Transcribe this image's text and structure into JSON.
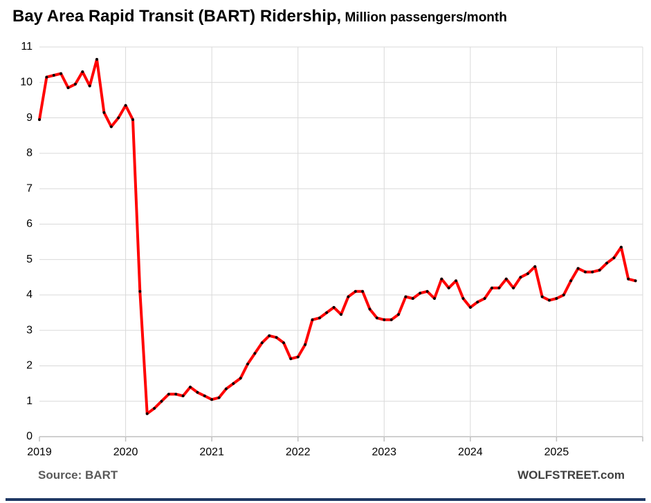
{
  "title": {
    "main": "Bay Area Rapid Transit (BART) Ridership,",
    "sub": " Million passengers/month"
  },
  "footer": {
    "source": "Source:  BART",
    "site": "WOLFSTREET.com"
  },
  "colors": {
    "line": "#ff0000",
    "marker": "#000000",
    "grid": "#d9d9d9",
    "axis": "#bfbfbf",
    "tick_label": "#000000",
    "accent_bar": "#1f3864"
  },
  "chart_data": {
    "type": "line",
    "title": "Bay Area Rapid Transit (BART) Ridership, Million passengers/month",
    "xlabel": "",
    "ylabel": "Million passengers/month",
    "ylim": [
      0,
      11
    ],
    "y_tick_step": 1,
    "grid": true,
    "legend": "none",
    "x_tick_labels": [
      "2019",
      "2020",
      "2021",
      "2022",
      "2023",
      "2024",
      "2025"
    ],
    "months_per_tick": 12,
    "months_total": 84,
    "x_start": "2019-01",
    "x_end": "2025-12",
    "series": [
      {
        "name": "BART ridership (million passengers/month)",
        "values": [
          8.95,
          10.15,
          10.2,
          10.25,
          9.85,
          9.95,
          10.3,
          9.9,
          10.65,
          9.15,
          8.75,
          9.0,
          9.35,
          8.95,
          4.1,
          0.65,
          0.8,
          1.0,
          1.2,
          1.2,
          1.15,
          1.4,
          1.25,
          1.15,
          1.05,
          1.1,
          1.35,
          1.5,
          1.65,
          2.05,
          2.35,
          2.65,
          2.85,
          2.8,
          2.65,
          2.2,
          2.25,
          2.6,
          3.3,
          3.35,
          3.5,
          3.65,
          3.45,
          3.95,
          4.1,
          4.1,
          3.6,
          3.35,
          3.3,
          3.3,
          3.45,
          3.95,
          3.9,
          4.05,
          4.1,
          3.9,
          4.45,
          4.2,
          4.4,
          3.9,
          3.65,
          3.8,
          3.9,
          4.2,
          4.2,
          4.45,
          4.2,
          4.5,
          4.6,
          4.8,
          3.95,
          3.85,
          3.9,
          4.0,
          4.4,
          4.75,
          4.65,
          4.65,
          4.7,
          4.9,
          5.05,
          5.35,
          4.45,
          4.4
        ]
      }
    ]
  }
}
